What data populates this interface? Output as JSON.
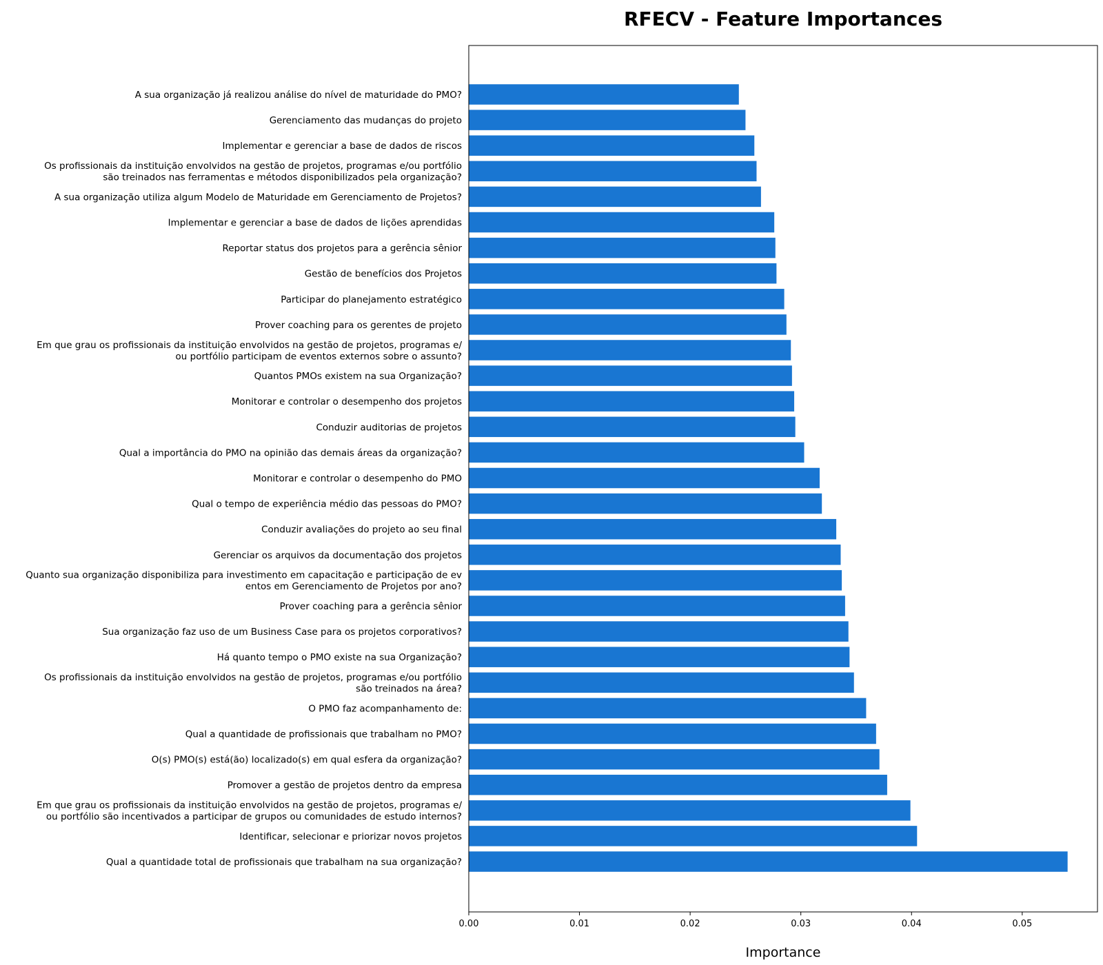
{
  "chart_data": {
    "type": "bar",
    "orientation": "horizontal",
    "title": "RFECV - Feature Importances",
    "xlabel": "Importance",
    "ylabel": "",
    "xlim": [
      0,
      0.0568
    ],
    "xticks": [
      0.0,
      0.01,
      0.02,
      0.03,
      0.04,
      0.05
    ],
    "xtick_labels": [
      "0.00",
      "0.01",
      "0.02",
      "0.03",
      "0.04",
      "0.05"
    ],
    "grid": false,
    "bar_color": "#1976d2",
    "categories": [
      "A sua organização já realizou análise do nível de maturidade do PMO?",
      "Gerenciamento das mudanças do projeto",
      "Implementar e gerenciar a base de dados de riscos",
      "Os profissionais da instituição envolvidos na gestão de projetos, programas e/ou portfólio\nsão treinados nas ferramentas e métodos disponibilizados pela organização?",
      "A sua organização utiliza algum Modelo de Maturidade em Gerenciamento de Projetos?",
      "Implementar e gerenciar a base de dados de lições aprendidas",
      "Reportar status dos projetos para a gerência sênior",
      "Gestão de benefícios dos Projetos",
      "Participar do planejamento estratégico",
      "Prover coaching para os gerentes de projeto",
      "Em que grau os profissionais da instituição envolvidos na gestão de projetos, programas e/\nou portfólio participam de eventos externos sobre o assunto?",
      "Quantos PMOs existem na sua Organização?",
      "Monitorar e controlar o desempenho dos projetos",
      "Conduzir auditorias de projetos",
      "Qual a importância do PMO na opinião das demais áreas da organização?",
      "Monitorar e controlar o desempenho do PMO",
      "Qual o tempo de experiência médio das pessoas do PMO?",
      "Conduzir avaliações do projeto ao seu final",
      "Gerenciar os arquivos da documentação dos projetos",
      "Quanto sua organização disponibiliza para investimento em capacitação e participação de ev\nentos em Gerenciamento de Projetos por ano?",
      "Prover coaching para a gerência sênior",
      "Sua organização faz uso de um Business Case para os projetos corporativos?",
      "Há quanto tempo o PMO existe na sua Organização?",
      "Os profissionais da instituição envolvidos na gestão de projetos, programas e/ou portfólio\nsão treinados na área?",
      "O PMO faz acompanhamento de:",
      "Qual a quantidade de profissionais que trabalham no PMO?",
      "O(s) PMO(s) está(ão) localizado(s) em qual esfera da organização?",
      "Promover a gestão de projetos dentro da empresa",
      "Em que grau os profissionais da instituição envolvidos na gestão de projetos, programas e/\nou portfólio são incentivados a participar de grupos ou comunidades de estudo internos?",
      "Identificar, selecionar e priorizar novos projetos",
      "Qual a quantidade total de profissionais que trabalham na sua organização?"
    ],
    "values": [
      0.0244,
      0.025,
      0.0258,
      0.026,
      0.0264,
      0.0276,
      0.0277,
      0.0278,
      0.0285,
      0.0287,
      0.0291,
      0.0292,
      0.0294,
      0.0295,
      0.0303,
      0.0317,
      0.0319,
      0.0332,
      0.0336,
      0.0337,
      0.034,
      0.0343,
      0.0344,
      0.0348,
      0.0359,
      0.0368,
      0.0371,
      0.0378,
      0.0399,
      0.0405,
      0.0541
    ]
  }
}
